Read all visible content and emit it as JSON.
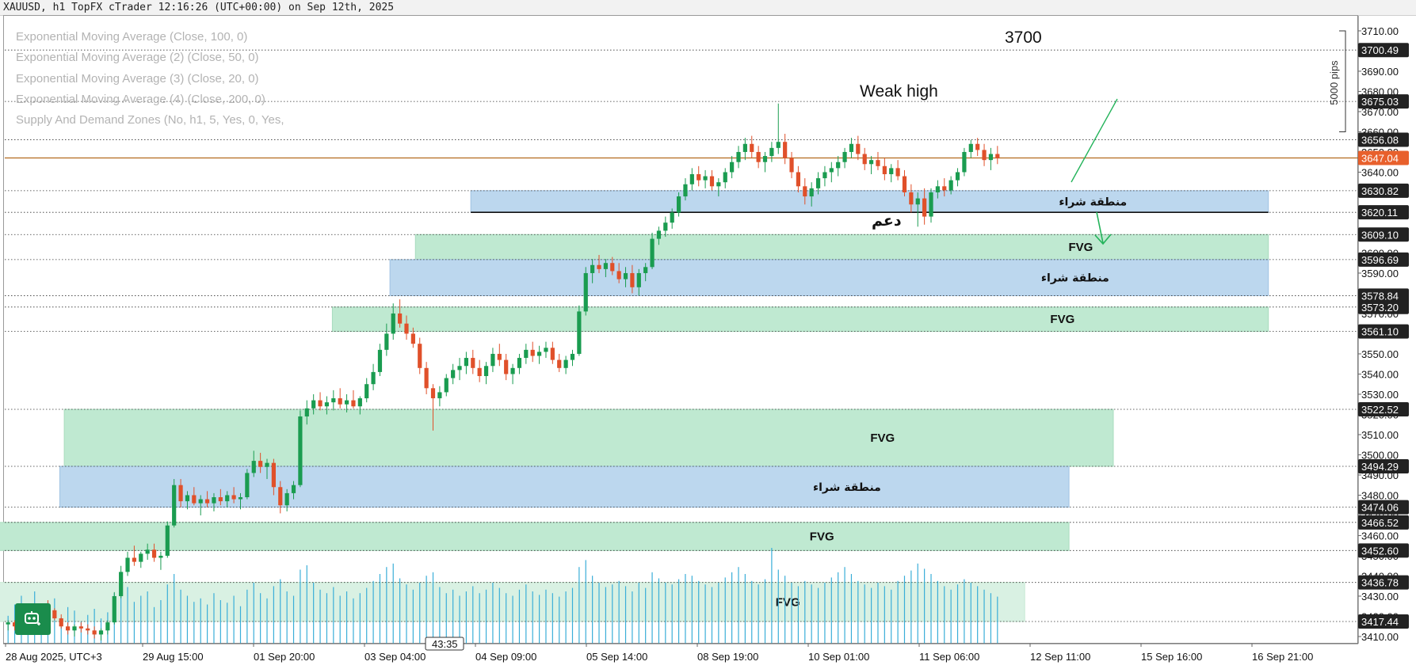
{
  "header": {
    "title": "XAUUSD, h1 TopFX cTrader 12:16:26 (UTC+00:00) on Sep 12th, 2025"
  },
  "indicators": [
    "Exponential Moving Average (Close, 100, 0)",
    "Exponential Moving Average (2) (Close, 50, 0)",
    "Exponential Moving Average (3) (Close, 20, 0)",
    "Exponential Moving Average (4) (Close, 200, 0)",
    "Supply And Demand Zones (No, h1, 5, Yes, 0, Yes,"
  ],
  "colors": {
    "up_candle": "#1a9c50",
    "down_candle": "#e0502a",
    "volume": "#3aaed8",
    "fvg_zone": "#bfe9d1",
    "fvg_zone_light": "#d9f1e3",
    "buy_zone": "#bcd7ee",
    "current_price": "#e8602c",
    "price_line": "#b36a1e",
    "bot_button": "#1a8c4c"
  },
  "chart_data": {
    "type": "candlestick",
    "symbol": "XAUUSD",
    "timeframe": "h1",
    "ylim": [
      3404,
      3713
    ],
    "y_ticks": [
      3410,
      3420,
      3430,
      3440,
      3450,
      3460,
      3470,
      3480,
      3490,
      3500,
      3510,
      3520,
      3530,
      3540,
      3550,
      3560,
      3570,
      3580,
      3590,
      3600,
      3610,
      3620,
      3630,
      3640,
      3650,
      3660,
      3670,
      3680,
      3690,
      3700,
      3710
    ],
    "y_tick_labels": [
      "3410.00",
      "3420.00",
      "3430.00",
      "3440.00",
      "3450.00",
      "3460.00",
      "3470.00",
      "3480.00",
      "3490.00",
      "3500.00",
      "3510.00",
      "3520.00",
      "3530.00",
      "3540.00",
      "3550.00",
      "3560.00",
      "3570.00",
      "3580.00",
      "3590.00",
      "3600.00",
      "3610.00",
      "3620.00",
      "3630.00",
      "3640.00",
      "3650.00",
      "3660.00",
      "3670.00",
      "3680.00",
      "3690.00",
      "3700.00",
      "3710.00"
    ],
    "x_labels": [
      "28 Aug 2025, UTC+3",
      "29 Aug 15:00",
      "01 Sep 20:00",
      "03 Sep 04:00",
      "04 Sep 09:00",
      "05 Sep 14:00",
      "08 Sep 19:00",
      "10 Sep 01:00",
      "11 Sep 06:00",
      "12 Sep 11:00",
      "15 Sep 16:00",
      "16 Sep 21:00"
    ],
    "current_price": {
      "value": 3647.04,
      "label": "3647.04"
    },
    "horizontal_levels": [
      {
        "value": 3700.49,
        "label": "3700.49"
      },
      {
        "value": 3675.03,
        "label": "3675.03"
      },
      {
        "value": 3656.08,
        "label": "3656.08"
      },
      {
        "value": 3630.82,
        "label": "3630.82"
      },
      {
        "value": 3620.11,
        "label": "3620.11"
      },
      {
        "value": 3609.1,
        "label": "3609.10"
      },
      {
        "value": 3596.69,
        "label": "3596.69"
      },
      {
        "value": 3578.84,
        "label": "3578.84"
      },
      {
        "value": 3573.2,
        "label": "3573.20"
      },
      {
        "value": 3561.1,
        "label": "3561.10"
      },
      {
        "value": 3522.52,
        "label": "3522.52"
      },
      {
        "value": 3494.29,
        "label": "3494.29"
      },
      {
        "value": 3474.06,
        "label": "3474.06"
      },
      {
        "value": 3466.52,
        "label": "3466.52"
      },
      {
        "value": 3452.6,
        "label": "3452.60"
      },
      {
        "value": 3436.78,
        "label": "3436.78"
      },
      {
        "value": 3417.44,
        "label": "3417.44"
      }
    ],
    "zones": [
      {
        "kind": "buy",
        "label": "منطقة شراء",
        "top": 3630.82,
        "bottom": 3620.11,
        "start": 3.2,
        "end": 10.4
      },
      {
        "kind": "fvg",
        "label": "FVG",
        "top": 3609.1,
        "bottom": 3596.69,
        "start": 2.7,
        "end": 10.4
      },
      {
        "kind": "buy",
        "label": "منطقة شراء",
        "top": 3596.69,
        "bottom": 3578.84,
        "start": 2.47,
        "end": 10.4
      },
      {
        "kind": "fvg",
        "label": "FVG",
        "top": 3573.2,
        "bottom": 3561.1,
        "start": 1.95,
        "end": 10.4
      },
      {
        "kind": "fvg",
        "label": "FVG",
        "top": 3522.52,
        "bottom": 3494.29,
        "start": -0.47,
        "end": 9.0
      },
      {
        "kind": "buy",
        "label": "منطقة شراء",
        "top": 3494.29,
        "bottom": 3474.06,
        "start": -0.51,
        "end": 8.6
      },
      {
        "kind": "fvg",
        "label": "FVG",
        "top": 3466.52,
        "bottom": 3452.6,
        "start": -1.54,
        "end": 8.6
      },
      {
        "kind": "fvg_light",
        "label": "FVG",
        "top": 3436.78,
        "bottom": 3417.44,
        "start": -1.52,
        "end": 8.2
      }
    ],
    "annotations": [
      {
        "text": "3700"
      },
      {
        "text": "Weak high"
      },
      {
        "text": "دعم"
      }
    ],
    "measure": {
      "label": "5000 pips",
      "top": 3710,
      "bottom": 3660
    },
    "countdown": "43:35",
    "candles": [
      [
        3416,
        3418,
        3413,
        3417
      ],
      [
        3417,
        3418,
        3413,
        3415
      ],
      [
        3415,
        3421,
        3414,
        3420
      ],
      [
        3420,
        3422,
        3417,
        3418
      ],
      [
        3418,
        3424,
        3417,
        3423
      ],
      [
        3423,
        3426,
        3421,
        3425
      ],
      [
        3425,
        3428,
        3422,
        3423
      ],
      [
        3423,
        3424,
        3418,
        3419
      ],
      [
        3419,
        3421,
        3414,
        3415
      ],
      [
        3415,
        3417,
        3411,
        3413
      ],
      [
        3413,
        3416,
        3410,
        3415
      ],
      [
        3415,
        3417,
        3412,
        3414
      ],
      [
        3414,
        3416,
        3411,
        3413
      ],
      [
        3413,
        3415,
        3409,
        3411
      ],
      [
        3411,
        3414,
        3408,
        3413
      ],
      [
        3413,
        3418,
        3411,
        3417
      ],
      [
        3417,
        3432,
        3416,
        3430
      ],
      [
        3430,
        3445,
        3429,
        3442
      ],
      [
        3442,
        3452,
        3440,
        3449
      ],
      [
        3449,
        3455,
        3445,
        3447
      ],
      [
        3447,
        3452,
        3444,
        3451
      ],
      [
        3451,
        3456,
        3448,
        3453
      ],
      [
        3453,
        3456,
        3447,
        3449
      ],
      [
        3449,
        3452,
        3443,
        3450
      ],
      [
        3450,
        3467,
        3449,
        3465
      ],
      [
        3465,
        3488,
        3464,
        3485
      ],
      [
        3485,
        3488,
        3474,
        3477
      ],
      [
        3477,
        3482,
        3473,
        3480
      ],
      [
        3480,
        3484,
        3475,
        3476
      ],
      [
        3476,
        3480,
        3470,
        3478
      ],
      [
        3478,
        3482,
        3474,
        3476
      ],
      [
        3476,
        3481,
        3472,
        3479
      ],
      [
        3479,
        3483,
        3475,
        3477
      ],
      [
        3477,
        3482,
        3474,
        3480
      ],
      [
        3480,
        3484,
        3476,
        3478
      ],
      [
        3478,
        3481,
        3473,
        3479
      ],
      [
        3479,
        3493,
        3478,
        3491
      ],
      [
        3491,
        3502,
        3489,
        3497
      ],
      [
        3497,
        3501,
        3491,
        3494
      ],
      [
        3494,
        3498,
        3488,
        3496
      ],
      [
        3496,
        3498,
        3480,
        3484
      ],
      [
        3484,
        3487,
        3471,
        3475
      ],
      [
        3475,
        3483,
        3472,
        3481
      ],
      [
        3481,
        3487,
        3478,
        3485
      ],
      [
        3485,
        3522,
        3484,
        3519
      ],
      [
        3519,
        3527,
        3515,
        3523
      ],
      [
        3523,
        3530,
        3520,
        3527
      ],
      [
        3527,
        3531,
        3522,
        3524
      ],
      [
        3524,
        3529,
        3520,
        3526
      ],
      [
        3526,
        3532,
        3522,
        3528
      ],
      [
        3528,
        3533,
        3523,
        3525
      ],
      [
        3525,
        3530,
        3521,
        3527
      ],
      [
        3527,
        3532,
        3523,
        3524
      ],
      [
        3524,
        3529,
        3520,
        3528
      ],
      [
        3528,
        3538,
        3526,
        3535
      ],
      [
        3535,
        3545,
        3532,
        3541
      ],
      [
        3541,
        3555,
        3539,
        3552
      ],
      [
        3552,
        3565,
        3549,
        3560
      ],
      [
        3560,
        3575,
        3557,
        3570
      ],
      [
        3570,
        3577,
        3563,
        3565
      ],
      [
        3565,
        3569,
        3557,
        3560
      ],
      [
        3560,
        3563,
        3553,
        3555
      ],
      [
        3555,
        3558,
        3540,
        3543
      ],
      [
        3543,
        3546,
        3530,
        3533
      ],
      [
        3533,
        3535,
        3512,
        3528
      ],
      [
        3528,
        3534,
        3524,
        3531
      ],
      [
        3531,
        3540,
        3529,
        3538
      ],
      [
        3538,
        3545,
        3535,
        3542
      ],
      [
        3542,
        3548,
        3537,
        3544
      ],
      [
        3544,
        3551,
        3540,
        3548
      ],
      [
        3548,
        3552,
        3540,
        3543
      ],
      [
        3543,
        3547,
        3536,
        3539
      ],
      [
        3539,
        3546,
        3535,
        3544
      ],
      [
        3544,
        3553,
        3541,
        3550
      ],
      [
        3550,
        3555,
        3544,
        3547
      ],
      [
        3547,
        3550,
        3537,
        3540
      ],
      [
        3540,
        3545,
        3535,
        3543
      ],
      [
        3543,
        3550,
        3540,
        3548
      ],
      [
        3548,
        3555,
        3545,
        3552
      ],
      [
        3552,
        3556,
        3546,
        3549
      ],
      [
        3549,
        3554,
        3545,
        3551
      ],
      [
        3551,
        3556,
        3548,
        3553
      ],
      [
        3553,
        3556,
        3545,
        3547
      ],
      [
        3547,
        3550,
        3541,
        3543
      ],
      [
        3543,
        3549,
        3540,
        3547
      ],
      [
        3547,
        3552,
        3544,
        3550
      ],
      [
        3550,
        3574,
        3549,
        3571
      ],
      [
        3571,
        3593,
        3569,
        3590
      ],
      [
        3590,
        3597,
        3585,
        3594
      ],
      [
        3594,
        3599,
        3590,
        3592
      ],
      [
        3592,
        3597,
        3588,
        3595
      ],
      [
        3595,
        3598,
        3589,
        3591
      ],
      [
        3591,
        3595,
        3585,
        3587
      ],
      [
        3587,
        3593,
        3583,
        3590
      ],
      [
        3590,
        3594,
        3580,
        3583
      ],
      [
        3583,
        3592,
        3579,
        3590
      ],
      [
        3590,
        3595,
        3586,
        3593
      ],
      [
        3593,
        3610,
        3592,
        3607
      ],
      [
        3607,
        3613,
        3604,
        3611
      ],
      [
        3611,
        3618,
        3608,
        3615
      ],
      [
        3615,
        3622,
        3612,
        3620
      ],
      [
        3620,
        3630,
        3618,
        3628
      ],
      [
        3628,
        3637,
        3626,
        3634
      ],
      [
        3634,
        3642,
        3631,
        3639
      ],
      [
        3639,
        3643,
        3633,
        3636
      ],
      [
        3636,
        3641,
        3632,
        3638
      ],
      [
        3638,
        3641,
        3631,
        3633
      ],
      [
        3633,
        3637,
        3628,
        3635
      ],
      [
        3635,
        3642,
        3632,
        3640
      ],
      [
        3640,
        3648,
        3637,
        3645
      ],
      [
        3645,
        3653,
        3642,
        3650
      ],
      [
        3650,
        3657,
        3646,
        3654
      ],
      [
        3654,
        3658,
        3647,
        3650
      ],
      [
        3650,
        3653,
        3642,
        3645
      ],
      [
        3645,
        3650,
        3640,
        3648
      ],
      [
        3648,
        3655,
        3645,
        3652
      ],
      [
        3652,
        3674,
        3649,
        3655
      ],
      [
        3655,
        3659,
        3644,
        3647
      ],
      [
        3647,
        3650,
        3637,
        3640
      ],
      [
        3640,
        3643,
        3630,
        3633
      ],
      [
        3633,
        3637,
        3624,
        3628
      ],
      [
        3628,
        3635,
        3623,
        3632
      ],
      [
        3632,
        3640,
        3629,
        3637
      ],
      [
        3637,
        3643,
        3633,
        3640
      ],
      [
        3640,
        3645,
        3635,
        3642
      ],
      [
        3642,
        3648,
        3638,
        3645
      ],
      [
        3645,
        3652,
        3642,
        3650
      ],
      [
        3650,
        3657,
        3647,
        3654
      ],
      [
        3654,
        3658,
        3646,
        3649
      ],
      [
        3649,
        3652,
        3641,
        3644
      ],
      [
        3644,
        3648,
        3639,
        3646
      ],
      [
        3646,
        3650,
        3641,
        3643
      ],
      [
        3643,
        3647,
        3636,
        3639
      ],
      [
        3639,
        3644,
        3635,
        3642
      ],
      [
        3642,
        3646,
        3636,
        3638
      ],
      [
        3638,
        3641,
        3628,
        3630
      ],
      [
        3630,
        3634,
        3620,
        3624
      ],
      [
        3624,
        3630,
        3613,
        3627
      ],
      [
        3627,
        3632,
        3614,
        3618
      ],
      [
        3618,
        3632,
        3615,
        3630
      ],
      [
        3630,
        3636,
        3627,
        3633
      ],
      [
        3633,
        3637,
        3628,
        3631
      ],
      [
        3631,
        3638,
        3629,
        3636
      ],
      [
        3636,
        3642,
        3633,
        3640
      ],
      [
        3640,
        3652,
        3638,
        3650
      ],
      [
        3650,
        3656,
        3647,
        3654
      ],
      [
        3654,
        3657,
        3648,
        3651
      ],
      [
        3651,
        3654,
        3643,
        3646
      ],
      [
        3646,
        3652,
        3641,
        3649
      ],
      [
        3649,
        3653,
        3644,
        3647
      ]
    ],
    "volumes": [
      32,
      45,
      55,
      28,
      60,
      35,
      48,
      52,
      30,
      42,
      38,
      25,
      33,
      40,
      29,
      36,
      58,
      72,
      65,
      48,
      55,
      60,
      42,
      50,
      68,
      80,
      62,
      55,
      48,
      52,
      45,
      58,
      50,
      47,
      55,
      43,
      62,
      70,
      58,
      52,
      66,
      74,
      60,
      55,
      85,
      90,
      70,
      62,
      58,
      65,
      55,
      60,
      52,
      58,
      64,
      72,
      80,
      88,
      92,
      75,
      68,
      62,
      70,
      78,
      82,
      65,
      58,
      62,
      55,
      60,
      66,
      58,
      62,
      70,
      64,
      58,
      55,
      62,
      68,
      60,
      56,
      62,
      58,
      54,
      60,
      64,
      88,
      96,
      78,
      70,
      65,
      68,
      72,
      66,
      60,
      70,
      64,
      82,
      75,
      70,
      68,
      74,
      80,
      78,
      72,
      68,
      65,
      70,
      76,
      82,
      88,
      80,
      72,
      68,
      74,
      110,
      85,
      78,
      70,
      66,
      72,
      68,
      64,
      70,
      76,
      82,
      88,
      80,
      72,
      68,
      64,
      70,
      66,
      62,
      72,
      78,
      84,
      92,
      86,
      80,
      72,
      66,
      62,
      68,
      74,
      70,
      66,
      62,
      58,
      54
    ]
  }
}
